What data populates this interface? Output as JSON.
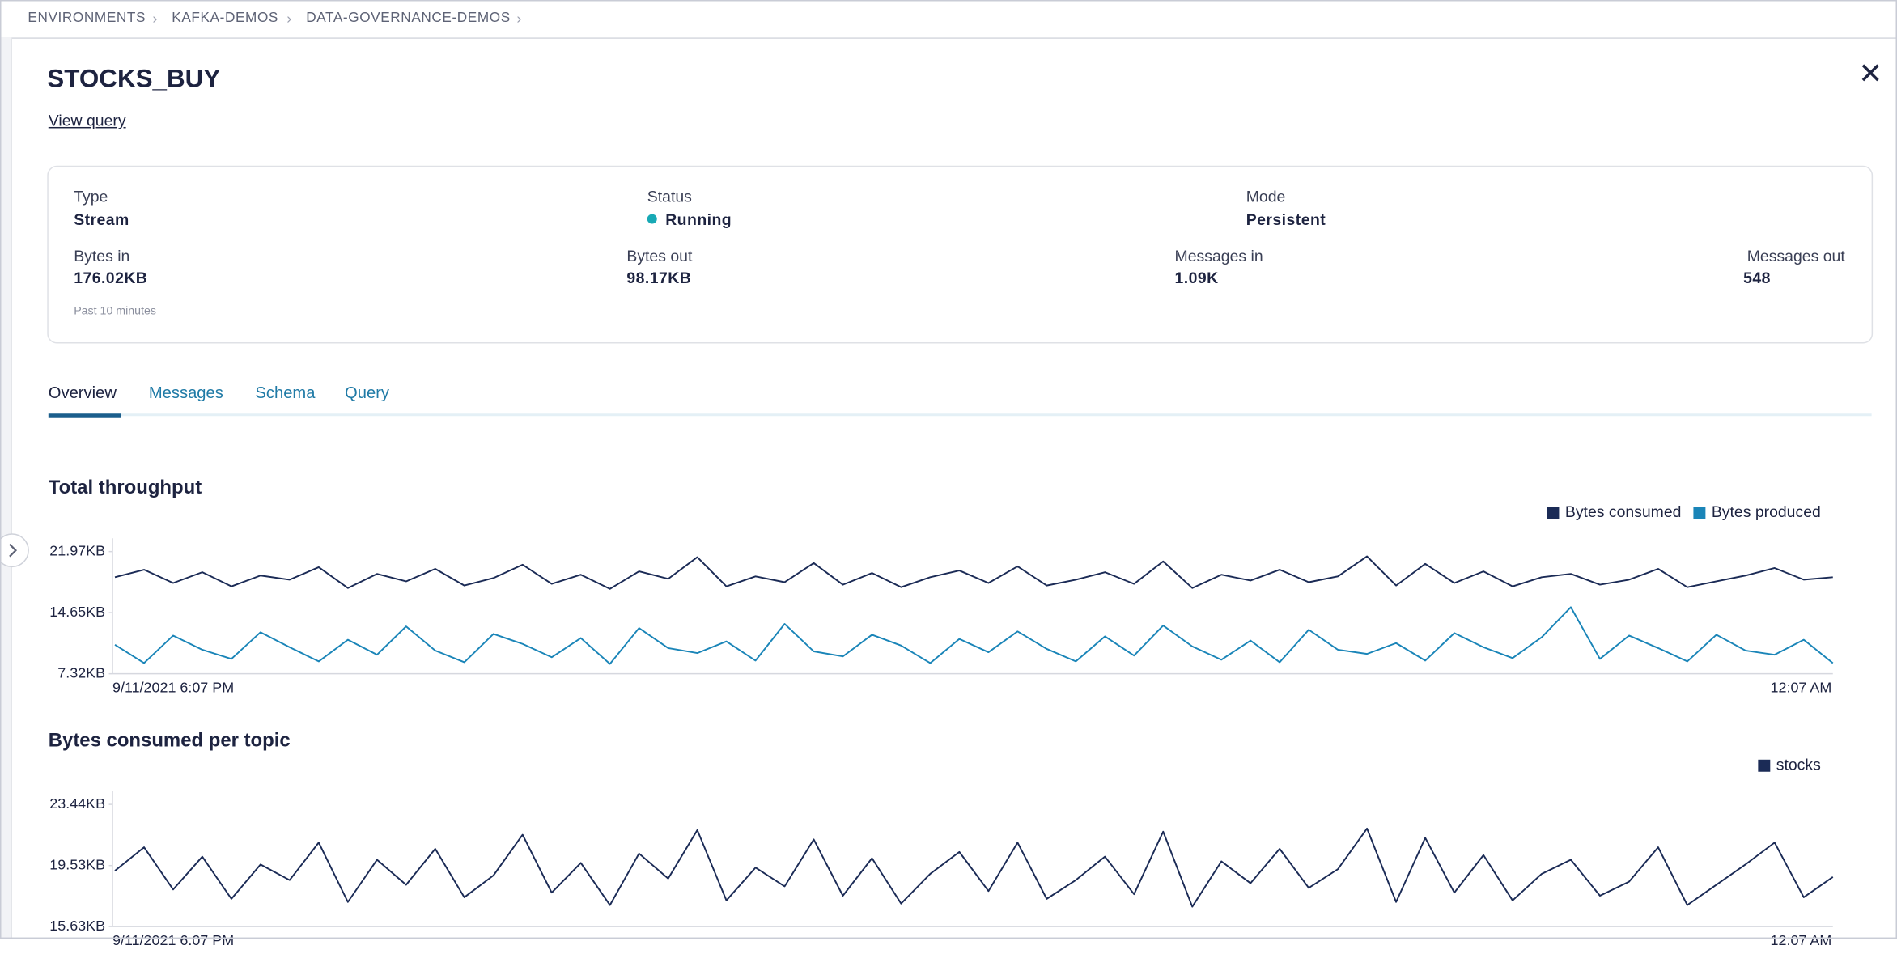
{
  "breadcrumbs": [
    "ENVIRONMENTS",
    "KAFKA-DEMOS",
    "DATA-GOVERNANCE-DEMOS"
  ],
  "header": {
    "title": "STOCKS_BUY",
    "link": "View query"
  },
  "summary": {
    "fields": [
      {
        "label": "Type",
        "value": "Stream"
      },
      {
        "label": "Status",
        "value": "Running"
      },
      {
        "label": "Mode",
        "value": "Persistent"
      },
      {
        "label": "Bytes in",
        "value": "176.02KB"
      },
      {
        "label": "Bytes out",
        "value": "98.17KB"
      },
      {
        "label": "Messages in",
        "value": "1.09K"
      },
      {
        "label": "Messages out",
        "value": "548"
      }
    ],
    "note": "Past 10 minutes"
  },
  "tabs": [
    "Overview",
    "Messages",
    "Schema",
    "Query"
  ],
  "chart_data": [
    {
      "type": "line",
      "title": "Total throughput",
      "legend": "top-right",
      "grid": false,
      "ylim": [
        7.32,
        21.97
      ],
      "yticks": [
        {
          "value": 21.97,
          "label": "21.97KB"
        },
        {
          "value": 14.65,
          "label": "14.65KB"
        },
        {
          "value": 7.32,
          "label": "7.32KB"
        }
      ],
      "x_labels": [
        "9/11/2021 6:07 PM",
        "12:07 AM"
      ],
      "series": [
        {
          "name": "Bytes consumed",
          "color": "#1b2b56",
          "values": [
            18.9,
            19.8,
            18.2,
            19.5,
            17.8,
            19.1,
            18.6,
            20.1,
            17.6,
            19.3,
            18.4,
            19.9,
            17.9,
            18.8,
            20.4,
            18.1,
            19.2,
            17.5,
            19.6,
            18.7,
            21.3,
            17.8,
            19.0,
            18.3,
            20.6,
            18.0,
            19.4,
            17.7,
            18.9,
            19.7,
            18.2,
            20.2,
            17.9,
            18.6,
            19.5,
            18.1,
            20.8,
            17.6,
            19.2,
            18.5,
            19.8,
            18.3,
            19.0,
            21.4,
            17.9,
            20.5,
            18.2,
            19.6,
            17.8,
            18.9,
            19.3,
            18.0,
            18.6,
            19.9,
            17.7,
            18.4,
            19.1,
            20.0,
            18.6,
            18.9
          ]
        },
        {
          "name": "Bytes produced",
          "color": "#1a85b8",
          "values": [
            10.8,
            8.6,
            11.9,
            10.2,
            9.1,
            12.3,
            10.5,
            8.8,
            11.4,
            9.6,
            13.0,
            10.1,
            8.7,
            12.1,
            10.9,
            9.3,
            11.6,
            8.5,
            12.8,
            10.4,
            9.8,
            11.2,
            8.9,
            13.3,
            10.0,
            9.4,
            12.0,
            10.7,
            8.6,
            11.5,
            9.9,
            12.4,
            10.3,
            8.8,
            11.8,
            9.5,
            13.1,
            10.6,
            9.0,
            11.3,
            8.7,
            12.6,
            10.2,
            9.7,
            11.0,
            8.9,
            12.2,
            10.5,
            9.2,
            11.7,
            15.3,
            9.1,
            11.9,
            10.4,
            8.8,
            12.0,
            10.1,
            9.6,
            11.4,
            8.6
          ]
        }
      ]
    },
    {
      "type": "line",
      "title": "Bytes consumed per topic",
      "legend": "top-right",
      "grid": false,
      "ylim": [
        15.63,
        23.44
      ],
      "yticks": [
        {
          "value": 23.44,
          "label": "23.44KB"
        },
        {
          "value": 19.53,
          "label": "19.53KB"
        },
        {
          "value": 15.63,
          "label": "15.63KB"
        }
      ],
      "x_labels": [
        "9/11/2021 6:07 PM",
        "12:07 AM"
      ],
      "series": [
        {
          "name": "stocks",
          "color": "#1b2b56",
          "values": [
            19.2,
            20.7,
            18.0,
            20.1,
            17.4,
            19.6,
            18.6,
            21.0,
            17.2,
            19.9,
            18.3,
            20.6,
            17.5,
            18.9,
            21.5,
            17.8,
            19.7,
            17.0,
            20.3,
            18.7,
            21.8,
            17.3,
            19.4,
            18.2,
            21.2,
            17.6,
            20.0,
            17.1,
            19.0,
            20.4,
            17.9,
            21.0,
            17.4,
            18.6,
            20.1,
            17.7,
            21.7,
            16.9,
            19.8,
            18.4,
            20.6,
            18.1,
            19.3,
            21.9,
            17.2,
            21.3,
            17.8,
            20.2,
            17.3,
            19.0,
            19.9,
            17.6,
            18.5,
            20.7,
            17.0,
            18.3,
            19.6,
            21.0,
            17.5,
            18.8
          ]
        }
      ]
    }
  ]
}
